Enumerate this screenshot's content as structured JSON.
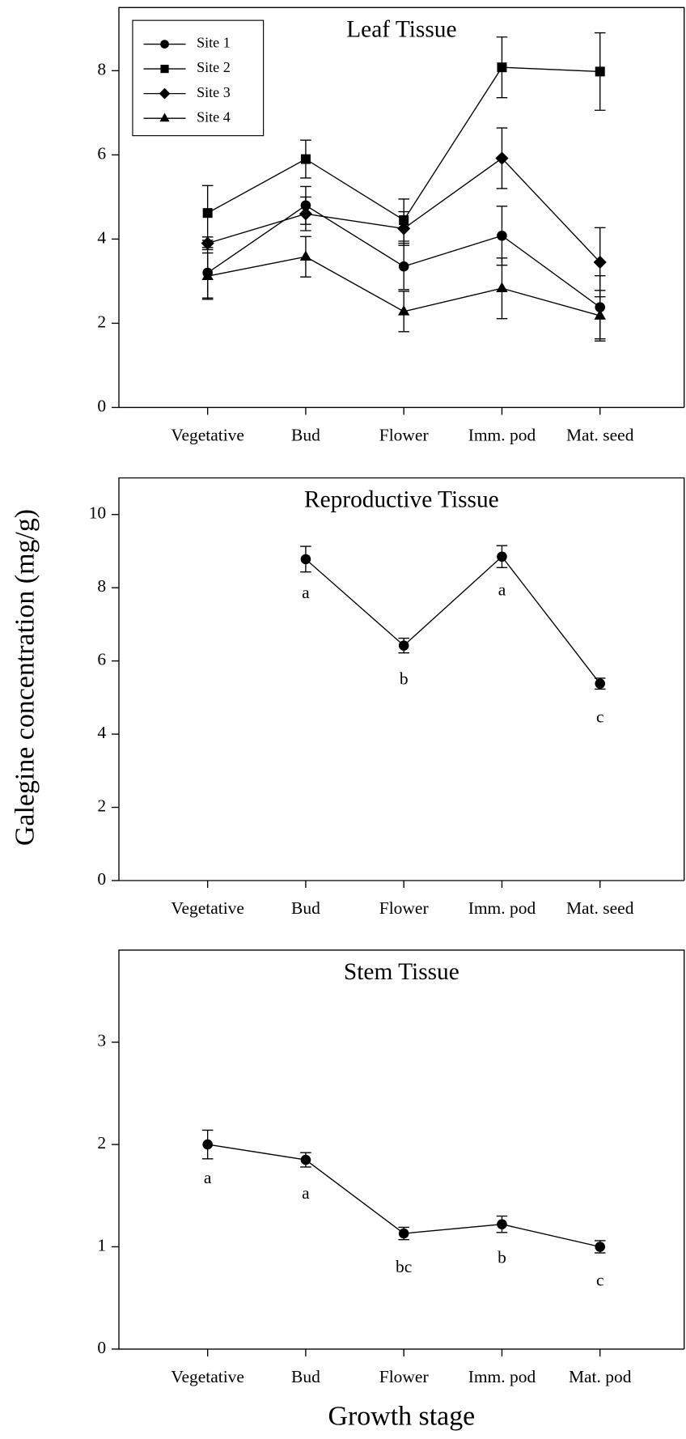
{
  "y_label": "Galegine concentration (mg/g)",
  "x_label": "Growth stage",
  "chart_data": [
    {
      "type": "line",
      "title": "Leaf Tissue",
      "categories": [
        "Vegetative",
        "Bud",
        "Flower",
        "Imm. pod",
        "Mat. seed"
      ],
      "ylim": [
        0,
        9.5
      ],
      "yticks": [
        0,
        2,
        4,
        6,
        8
      ],
      "legend": "upper left",
      "series": [
        {
          "name": "Site 1",
          "marker": "circle",
          "color": "#000000",
          "values": [
            3.2,
            4.8,
            3.35,
            4.08,
            2.38
          ],
          "errors": [
            0.6,
            0.45,
            0.55,
            0.7,
            0.75
          ]
        },
        {
          "name": "Site 2",
          "marker": "square",
          "color": "#000000",
          "values": [
            4.62,
            5.9,
            4.45,
            8.08,
            7.98
          ],
          "errors": [
            0.65,
            0.45,
            0.5,
            0.72,
            0.92
          ]
        },
        {
          "name": "Site 3",
          "marker": "diamond",
          "color": "#000000",
          "values": [
            3.9,
            4.6,
            4.25,
            5.92,
            3.45
          ],
          "errors": [
            0.15,
            0.4,
            0.4,
            0.72,
            0.82
          ]
        },
        {
          "name": "Site 4",
          "marker": "triangle",
          "color": "#000000",
          "values": [
            3.12,
            3.58,
            2.28,
            2.83,
            2.18
          ],
          "errors": [
            0.55,
            0.48,
            0.48,
            0.72,
            0.6
          ]
        }
      ]
    },
    {
      "type": "line",
      "title": "Reproductive Tissue",
      "categories": [
        "Vegetative",
        "Bud",
        "Flower",
        "Imm. pod",
        "Mat. seed"
      ],
      "ylim": [
        0,
        11
      ],
      "yticks": [
        0,
        2,
        4,
        6,
        8,
        10
      ],
      "series": [
        {
          "marker": "circle",
          "color": "#000000",
          "values": [
            null,
            8.78,
            6.42,
            8.85,
            5.38
          ],
          "errors": [
            null,
            0.35,
            0.2,
            0.3,
            0.15
          ],
          "annotations": [
            null,
            "a",
            "b",
            "a",
            "c"
          ]
        }
      ]
    },
    {
      "type": "line",
      "title": "Stem Tissue",
      "categories": [
        "Vegetative",
        "Bud",
        "Flower",
        "Imm. pod",
        "Mat. pod"
      ],
      "ylim": [
        0,
        3.9
      ],
      "yticks": [
        0,
        1,
        2,
        3
      ],
      "series": [
        {
          "marker": "circle",
          "color": "#000000",
          "values": [
            2.0,
            1.85,
            1.13,
            1.22,
            1.0
          ],
          "errors": [
            0.14,
            0.07,
            0.06,
            0.08,
            0.06
          ],
          "annotations": [
            "a",
            "a",
            "bc",
            "b",
            "c"
          ]
        }
      ]
    }
  ]
}
